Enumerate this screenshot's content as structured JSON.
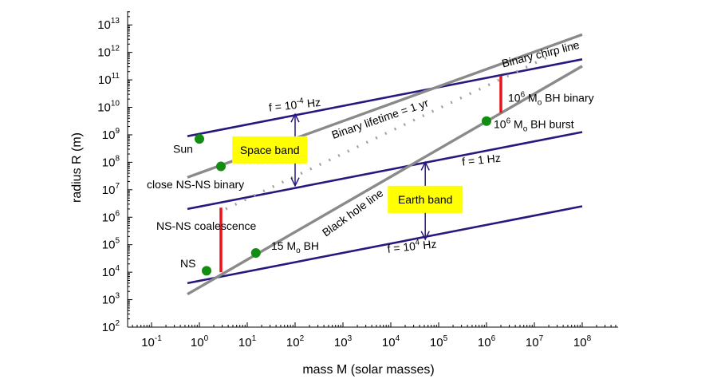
{
  "chart_data": {
    "type": "line",
    "title": "",
    "xlabel": "mass M (solar masses)",
    "ylabel": "radius R (m)",
    "x_scale": "log",
    "y_scale": "log",
    "xlim_log10": [
      -1.5,
      8.75
    ],
    "ylim_log10": [
      2,
      13.5
    ],
    "x_ticks": [
      {
        "base": "10",
        "exp": "-1",
        "log": -1
      },
      {
        "base": "10",
        "exp": "0",
        "log": 0
      },
      {
        "base": "10",
        "exp": "1",
        "log": 1
      },
      {
        "base": "10",
        "exp": "2",
        "log": 2
      },
      {
        "base": "10",
        "exp": "3",
        "log": 3
      },
      {
        "base": "10",
        "exp": "4",
        "log": 4
      },
      {
        "base": "10",
        "exp": "5",
        "log": 5
      },
      {
        "base": "10",
        "exp": "6",
        "log": 6
      },
      {
        "base": "10",
        "exp": "7",
        "log": 7
      },
      {
        "base": "10",
        "exp": "8",
        "log": 8
      }
    ],
    "y_ticks": [
      {
        "base": "10",
        "exp": "2",
        "log": 2
      },
      {
        "base": "10",
        "exp": "3",
        "log": 3
      },
      {
        "base": "10",
        "exp": "4",
        "log": 4
      },
      {
        "base": "10",
        "exp": "5",
        "log": 5
      },
      {
        "base": "10",
        "exp": "6",
        "log": 6
      },
      {
        "base": "10",
        "exp": "7",
        "log": 7
      },
      {
        "base": "10",
        "exp": "8",
        "log": 8
      },
      {
        "base": "10",
        "exp": "9",
        "log": 9
      },
      {
        "base": "10",
        "exp": "10",
        "log": 10
      },
      {
        "base": "10",
        "exp": "11",
        "log": 11
      },
      {
        "base": "10",
        "exp": "12",
        "log": 12
      },
      {
        "base": "10",
        "exp": "13",
        "log": 13
      }
    ],
    "colors": {
      "frequency_line": "#27187e",
      "black_hole_line": "#8a8a8a",
      "chirp_line": "#8a8a8a",
      "lifetime_line": "#a0a0a0",
      "event_segment": "#e8141c",
      "object_point": "#118d11",
      "band_fill": "#ffff00",
      "arrow": "#27187e"
    },
    "series": [
      {
        "name": "f = 10^-4 Hz",
        "style": "frequency",
        "x_log": [
          -0.25,
          8
        ],
        "y_log": [
          8.95,
          11.75
        ]
      },
      {
        "name": "f = 1 Hz",
        "style": "frequency",
        "x_log": [
          -0.25,
          8
        ],
        "y_log": [
          6.3,
          9.1
        ]
      },
      {
        "name": "f = 10^4 Hz",
        "style": "frequency",
        "x_log": [
          -0.25,
          8
        ],
        "y_log": [
          3.6,
          6.4
        ]
      },
      {
        "name": "Black hole line",
        "style": "black_hole",
        "x_log": [
          -0.25,
          8
        ],
        "y_log": [
          3.2,
          11.5
        ]
      },
      {
        "name": "Binary chirp line",
        "style": "chirp",
        "x_log": [
          -0.25,
          8
        ],
        "y_log": [
          7.45,
          12.65
        ]
      },
      {
        "name": "Binary lifetime = 1 yr",
        "style": "lifetime",
        "x_log": [
          0.55,
          7.85
        ],
        "y_log": [
          6.3,
          12.3
        ]
      }
    ],
    "segments": [
      {
        "name": "NS-NS coalescence",
        "x_log": 0.45,
        "y_log": [
          4,
          6.35
        ]
      },
      {
        "name": "10^6 Mo BH binary",
        "x_log": 6.3,
        "y_log": [
          9.8,
          11.15
        ]
      }
    ],
    "points": [
      {
        "name": "Sun",
        "x_log": 0,
        "y_log": 8.85
      },
      {
        "name": "close NS-NS binary",
        "x_log": 0.45,
        "y_log": 7.85
      },
      {
        "name": "NS",
        "x_log": 0.15,
        "y_log": 4.05
      },
      {
        "name": "15 Mo BH",
        "x_log": 1.18,
        "y_log": 4.7
      },
      {
        "name": "10^6 Mo BH burst",
        "x_log": 6,
        "y_log": 9.5
      }
    ],
    "arrows": [
      {
        "name": "space-band-arrow",
        "x_log": 2,
        "y_log": [
          7.15,
          9.75
        ]
      },
      {
        "name": "earth-band-arrow",
        "x_log": 4.72,
        "y_log": [
          5.2,
          8
        ]
      }
    ],
    "bands": [
      {
        "name": "space-band",
        "label": "Space band",
        "x_log": 1.47,
        "y_log": 8.45
      },
      {
        "name": "earth-band",
        "label": "Earth band",
        "x_log": 4.72,
        "y_log": 6.65
      }
    ],
    "annotations": [
      {
        "name": "f-1e-4-label",
        "parts": [
          [
            "f = 10",
            ""
          ],
          [
            "-4",
            "sup"
          ],
          [
            " Hz",
            ""
          ]
        ],
        "x_log": 2,
        "y_log": 9.95,
        "anchor": "middle",
        "rotate": -6
      },
      {
        "name": "f-1-label",
        "parts": [
          [
            "f = 1 Hz",
            ""
          ]
        ],
        "x_log": 5.9,
        "y_log": 7.95,
        "anchor": "middle",
        "rotate": -6
      },
      {
        "name": "f-1e4-label",
        "parts": [
          [
            "f = 10",
            ""
          ],
          [
            "4",
            "sup"
          ],
          [
            " Hz",
            ""
          ]
        ],
        "x_log": 4.45,
        "y_log": 4.8,
        "anchor": "middle",
        "rotate": -6
      },
      {
        "name": "chirp-line-label",
        "parts": [
          [
            "Binary chirp line",
            ""
          ]
        ],
        "x_log": 7.15,
        "y_log": 11.8,
        "anchor": "middle",
        "rotate": -14
      },
      {
        "name": "lifetime-label",
        "parts": [
          [
            "Binary lifetime = 1 yr",
            ""
          ]
        ],
        "x_log": 3.8,
        "y_log": 9.45,
        "anchor": "middle",
        "rotate": -19
      },
      {
        "name": "black-hole-line-label",
        "parts": [
          [
            "Black hole line",
            ""
          ]
        ],
        "x_log": 3.25,
        "y_log": 6.05,
        "anchor": "middle",
        "rotate": -36
      },
      {
        "name": "sun-label",
        "parts": [
          [
            "Sun",
            ""
          ]
        ],
        "x_log": -0.55,
        "y_log": 8.35,
        "anchor": "start",
        "rotate": 0
      },
      {
        "name": "close-ns-ns-label",
        "parts": [
          [
            "close NS-NS binary",
            ""
          ]
        ],
        "x_log": -1.1,
        "y_log": 7.05,
        "anchor": "start",
        "rotate": 0
      },
      {
        "name": "ns-ns-coalescence-label",
        "parts": [
          [
            "NS-NS coalescence",
            ""
          ]
        ],
        "x_log": -0.9,
        "y_log": 5.55,
        "anchor": "start",
        "rotate": 0
      },
      {
        "name": "ns-label",
        "parts": [
          [
            "NS",
            ""
          ]
        ],
        "x_log": -0.4,
        "y_log": 4.18,
        "anchor": "start",
        "rotate": 0
      },
      {
        "name": "bh-15-label",
        "parts": [
          [
            "15 M",
            ""
          ],
          [
            "o",
            "sub"
          ],
          [
            " BH",
            ""
          ]
        ],
        "x_log": 1.5,
        "y_log": 4.82,
        "anchor": "start",
        "rotate": 0
      },
      {
        "name": "bh-binary-label",
        "parts": [
          [
            "10",
            ""
          ],
          [
            "6",
            "sup"
          ],
          [
            " M",
            ""
          ],
          [
            "o",
            "sub"
          ],
          [
            " BH binary",
            ""
          ]
        ],
        "x_log": 6.45,
        "y_log": 10.2,
        "anchor": "start",
        "rotate": 0
      },
      {
        "name": "bh-burst-label",
        "parts": [
          [
            "10",
            ""
          ],
          [
            "6",
            "sup"
          ],
          [
            " M",
            ""
          ],
          [
            "o",
            "sub"
          ],
          [
            " BH burst",
            ""
          ]
        ],
        "x_log": 6.15,
        "y_log": 9.25,
        "anchor": "start",
        "rotate": 0
      }
    ]
  }
}
